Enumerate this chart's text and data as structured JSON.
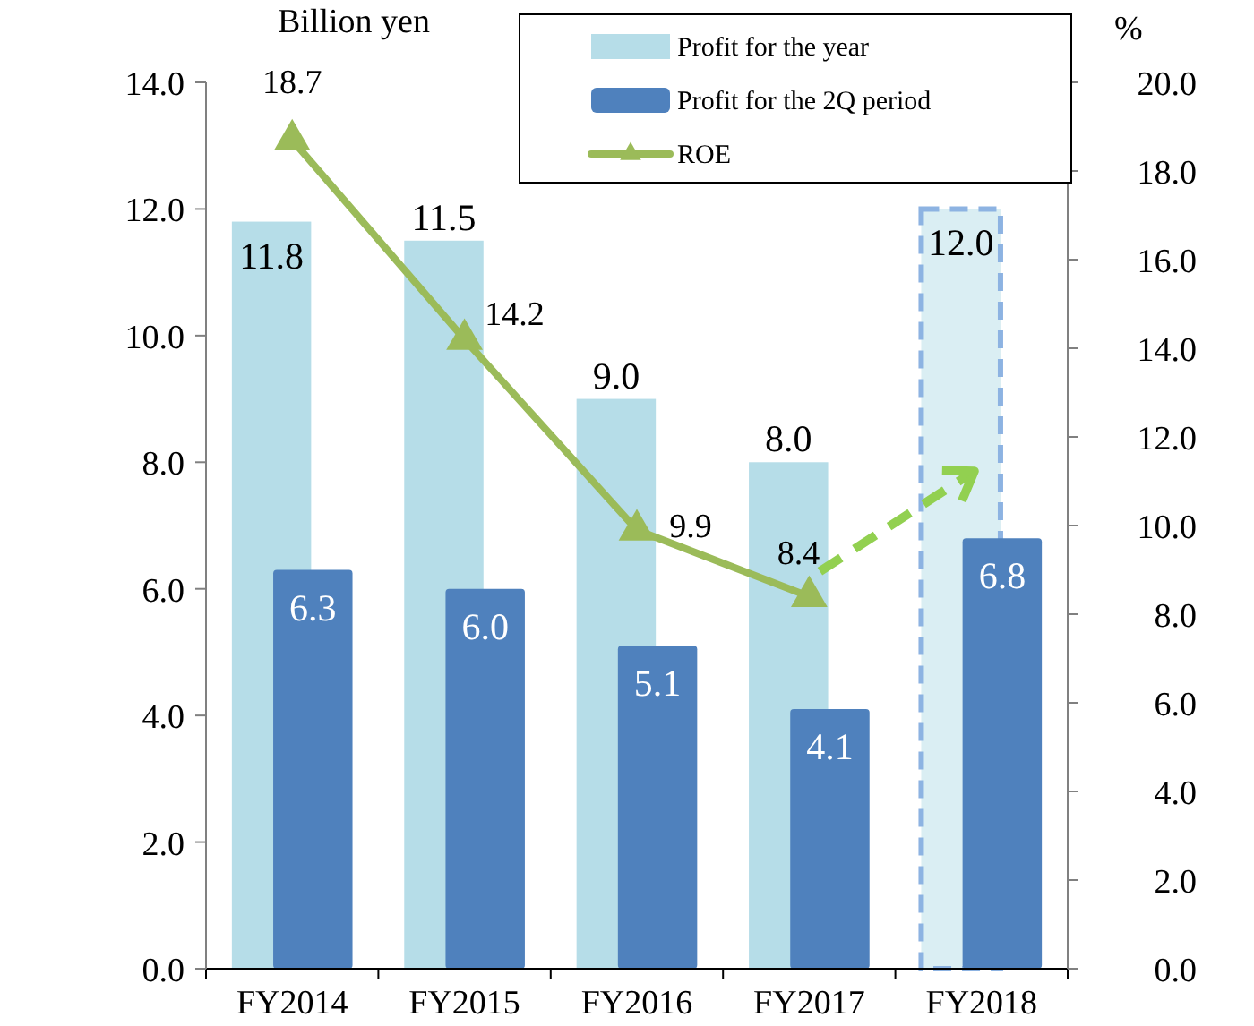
{
  "chart_data": {
    "type": "bar",
    "ylabel": "Billion yen",
    "y2label": "%",
    "categories": [
      "FY2014",
      "FY2015",
      "FY2016",
      "FY2017",
      "FY2018"
    ],
    "series": [
      {
        "name": "Profit for the year",
        "color": "#b6dde8",
        "colors": [
          "#b6dde8",
          "#b6dde8",
          "#b6dde8",
          "#b6dde8",
          "#daeef3"
        ],
        "values": [
          11.8,
          11.5,
          9.0,
          8.0,
          12.0
        ],
        "value_labels": [
          "11.8",
          "11.5",
          "9.0",
          "8.0",
          "12.0"
        ]
      },
      {
        "name": "Profit for the 2Q period",
        "color": "#4f81bd",
        "values": [
          6.3,
          6.0,
          5.1,
          4.1,
          6.8
        ],
        "value_labels": [
          "6.3",
          "6.0",
          "5.1",
          "4.1",
          "6.8"
        ]
      },
      {
        "name": "ROE",
        "type": "line",
        "axis": "y2",
        "color": "#9bbb59",
        "marker": "triangle",
        "values": [
          18.7,
          14.2,
          9.9,
          8.4,
          null
        ],
        "value_labels": [
          "18.7",
          "14.2",
          "9.9",
          "8.4",
          null
        ]
      }
    ],
    "ylim": [
      0,
      14
    ],
    "yticks": [
      {
        "value": 0,
        "label": "0.0"
      },
      {
        "value": 2,
        "label": "2.0"
      },
      {
        "value": 4,
        "label": "4.0"
      },
      {
        "value": 6,
        "label": "6.0"
      },
      {
        "value": 8,
        "label": "8.0"
      },
      {
        "value": 10,
        "label": "10.0"
      },
      {
        "value": 12,
        "label": "12.0"
      },
      {
        "value": 14,
        "label": "14.0"
      }
    ],
    "y2lim": [
      0,
      20
    ],
    "y2ticks": [
      {
        "value": 0,
        "label": "0.0"
      },
      {
        "value": 2,
        "label": "2.0"
      },
      {
        "value": 4,
        "label": "4.0"
      },
      {
        "value": 6,
        "label": "6.0"
      },
      {
        "value": 8,
        "label": "8.0"
      },
      {
        "value": 10,
        "label": "10.0"
      },
      {
        "value": 12,
        "label": "12.0"
      },
      {
        "value": 14,
        "label": "14.0"
      },
      {
        "value": 16,
        "label": "16.0"
      },
      {
        "value": 18,
        "label": "18.0"
      },
      {
        "value": 20,
        "label": "20.0"
      }
    ],
    "legend": "top right",
    "grid": false
  }
}
